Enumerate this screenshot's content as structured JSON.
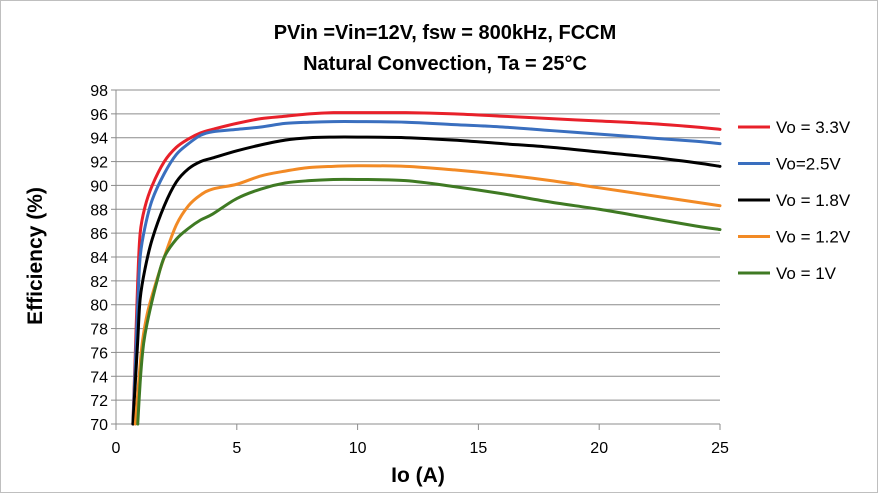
{
  "chart_data": {
    "type": "line",
    "title": "PVin =Vin=12V, fsw = 800kHz, FCCM",
    "subtitle": "Natural  Convection, Ta = 25°C",
    "xlabel": "Io (A)",
    "ylabel": "Efficiency (%)",
    "xlim": [
      0,
      25
    ],
    "ylim": [
      70,
      98
    ],
    "xticks": [
      0,
      5,
      10,
      15,
      20,
      25
    ],
    "yticks": [
      70,
      72,
      74,
      76,
      78,
      80,
      82,
      84,
      86,
      88,
      90,
      92,
      94,
      96,
      98
    ],
    "grid": true,
    "legend_position": "right",
    "series": [
      {
        "name": "Vo = 3.3V",
        "color": "#e8202a",
        "x": [
          0.7,
          0.8,
          0.9,
          1.0,
          1.2,
          1.5,
          2.0,
          2.5,
          3.0,
          3.5,
          4.0,
          5.0,
          6.0,
          7.0,
          8.0,
          9.0,
          10.0,
          12.0,
          14.0,
          16.0,
          18.0,
          20.0,
          22.0,
          24.0,
          25.0
        ],
        "y": [
          70.0,
          76.0,
          82.0,
          86.0,
          88.2,
          90.0,
          92.0,
          93.2,
          93.9,
          94.4,
          94.7,
          95.2,
          95.6,
          95.8,
          96.0,
          96.1,
          96.1,
          96.1,
          96.0,
          95.8,
          95.6,
          95.4,
          95.2,
          94.9,
          94.7
        ]
      },
      {
        "name": "Vo=2.5V",
        "color": "#3a6fbf",
        "x": [
          0.7,
          0.8,
          0.9,
          1.0,
          1.2,
          1.5,
          2.0,
          2.5,
          3.0,
          3.5,
          4.0,
          5.0,
          6.0,
          7.0,
          8.0,
          9.0,
          10.0,
          12.0,
          14.0,
          16.0,
          18.0,
          20.0,
          22.0,
          24.0,
          25.0
        ],
        "y": [
          70.0,
          75.0,
          80.0,
          84.0,
          86.5,
          88.8,
          91.0,
          92.6,
          93.5,
          94.2,
          94.5,
          94.7,
          94.9,
          95.2,
          95.3,
          95.35,
          95.35,
          95.3,
          95.1,
          94.9,
          94.6,
          94.3,
          94.0,
          93.7,
          93.5
        ]
      },
      {
        "name": "Vo = 1.8V",
        "color": "#000000",
        "x": [
          0.7,
          0.8,
          0.9,
          1.0,
          1.2,
          1.5,
          2.0,
          2.5,
          3.0,
          3.5,
          4.0,
          5.0,
          6.0,
          7.0,
          8.0,
          9.0,
          10.0,
          12.0,
          14.0,
          16.0,
          18.0,
          20.0,
          22.0,
          24.0,
          25.0
        ],
        "y": [
          70.0,
          73.5,
          77.0,
          80.5,
          83.0,
          85.5,
          88.3,
          90.3,
          91.4,
          92.0,
          92.3,
          92.9,
          93.4,
          93.8,
          94.0,
          94.05,
          94.05,
          94.0,
          93.8,
          93.5,
          93.2,
          92.8,
          92.4,
          91.9,
          91.6
        ]
      },
      {
        "name": "Vo = 1.2V",
        "color": "#f28a25",
        "x": [
          0.8,
          0.9,
          1.0,
          1.1,
          1.3,
          1.6,
          2.0,
          2.5,
          3.0,
          3.5,
          4.0,
          5.0,
          6.0,
          7.0,
          8.0,
          9.0,
          10.0,
          12.0,
          14.0,
          16.0,
          18.0,
          20.0,
          22.0,
          24.0,
          25.0
        ],
        "y": [
          70.0,
          72.5,
          75.0,
          77.0,
          79.3,
          81.5,
          84.0,
          86.7,
          88.3,
          89.2,
          89.7,
          90.1,
          90.8,
          91.2,
          91.5,
          91.6,
          91.65,
          91.6,
          91.3,
          90.9,
          90.4,
          89.8,
          89.2,
          88.6,
          88.3
        ]
      },
      {
        "name": "Vo = 1V",
        "color": "#3f7a23",
        "x": [
          0.9,
          1.0,
          1.1,
          1.2,
          1.4,
          1.7,
          2.0,
          2.5,
          3.0,
          3.5,
          4.0,
          5.0,
          6.0,
          7.0,
          8.0,
          9.0,
          10.0,
          12.0,
          14.0,
          16.0,
          18.0,
          20.0,
          22.0,
          24.0,
          25.0
        ],
        "y": [
          70.0,
          73.5,
          76.0,
          77.5,
          79.5,
          82.0,
          84.0,
          85.5,
          86.4,
          87.1,
          87.6,
          88.9,
          89.7,
          90.2,
          90.4,
          90.5,
          90.5,
          90.4,
          89.9,
          89.3,
          88.6,
          88.0,
          87.3,
          86.6,
          86.3
        ]
      }
    ]
  }
}
